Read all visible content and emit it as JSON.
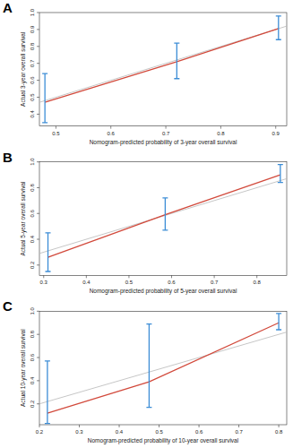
{
  "chart_data": [
    {
      "type": "line",
      "title": "A",
      "x_label": "Nomogram-predicted probability of 3-year overall survival",
      "y_label": "Actual 3-year overall survival",
      "xlim": [
        0.47,
        0.92
      ],
      "ylim": [
        0.33,
        1.0
      ],
      "xticks": [
        0.5,
        0.6,
        0.7,
        0.8,
        0.9
      ],
      "yticks": [
        0.4,
        0.5,
        0.6,
        0.7,
        0.8,
        0.9,
        {
          "value": 1,
          "label": "1.0"
        }
      ],
      "series": [
        {
          "color": "#d24a3c",
          "marker": "none",
          "x": [
            0.48,
            0.72,
            0.905
          ],
          "values": [
            0.47,
            0.71,
            0.905
          ],
          "lower": [
            0.35,
            0.61,
            0.84
          ],
          "upper": [
            0.64,
            0.82,
            0.98
          ]
        }
      ]
    },
    {
      "type": "line",
      "title": "B",
      "x_label": "Nomogram-predicted probability of 5-year overall survival",
      "y_label": "Actual 5-year overall survival",
      "xlim": [
        0.29,
        0.87
      ],
      "ylim": [
        0.12,
        1.0
      ],
      "xticks": [
        0.3,
        0.4,
        0.5,
        0.6,
        0.7,
        0.8
      ],
      "yticks": [
        0.2,
        0.4,
        0.6,
        0.8,
        {
          "value": 1,
          "label": "1.0"
        }
      ],
      "series": [
        {
          "color": "#d24a3c",
          "marker": "none",
          "x": [
            0.31,
            0.585,
            0.855
          ],
          "values": [
            0.26,
            0.59,
            0.9
          ],
          "lower": [
            0.15,
            0.47,
            0.84
          ],
          "upper": [
            0.45,
            0.72,
            0.98
          ]
        }
      ]
    },
    {
      "type": "line",
      "title": "C",
      "x_label": "Nomogram-predicted probability of 10-year overall survival",
      "y_label": "Actual 10-year overall survival",
      "xlim": [
        0.2,
        0.82
      ],
      "ylim": [
        0.02,
        1.0
      ],
      "xticks": [
        0.2,
        0.3,
        0.4,
        0.5,
        0.6,
        0.7,
        0.8
      ],
      "yticks": [
        0.2,
        0.4,
        0.6,
        0.8,
        {
          "value": 1,
          "label": "1.0"
        }
      ],
      "series": [
        {
          "color": "#d24a3c",
          "marker": "none",
          "x": [
            0.22,
            0.475,
            0.8
          ],
          "values": [
            0.12,
            0.39,
            0.9
          ],
          "lower": [
            0.03,
            0.17,
            0.84
          ],
          "upper": [
            0.57,
            0.89,
            0.98
          ]
        }
      ]
    }
  ]
}
